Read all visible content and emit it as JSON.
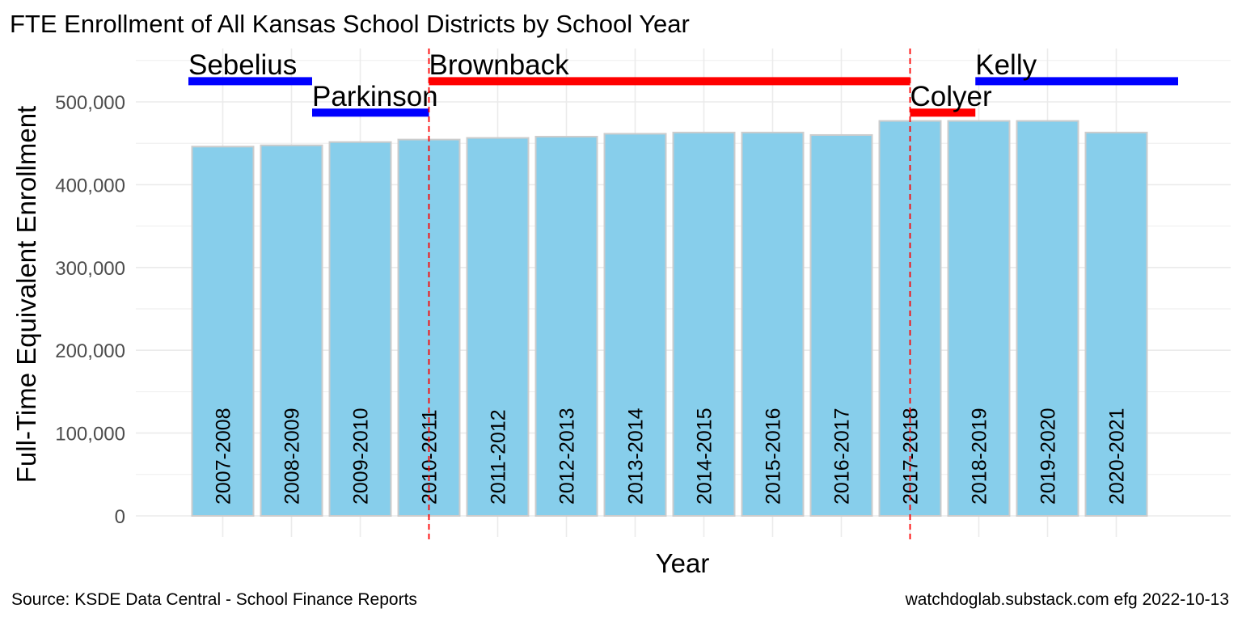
{
  "chart_data": {
    "type": "bar",
    "title": "FTE Enrollment of All Kansas School Districts by School Year",
    "xlabel": "Year",
    "ylabel": "Full-Time Equivalent Enrollment",
    "ylim": [
      0,
      540000
    ],
    "yticks": [
      0,
      100000,
      200000,
      300000,
      400000,
      500000
    ],
    "ytick_labels": [
      "0",
      "100,000",
      "200,000",
      "300,000",
      "400,000",
      "500,000"
    ],
    "categories": [
      "2007-2008",
      "2008-2009",
      "2009-2010",
      "2010-2011",
      "2011-2012",
      "2012-2013",
      "2013-2014",
      "2014-2015",
      "2015-2016",
      "2016-2017",
      "2017-2018",
      "2018-2019",
      "2019-2020",
      "2020-2021"
    ],
    "values": [
      446000,
      447500,
      451500,
      454500,
      456500,
      458000,
      461500,
      463000,
      463000,
      460000,
      477000,
      477000,
      477000,
      463000
    ],
    "bar_color": "#87CEEB",
    "bar_edge_color": "#cccccc",
    "grid": true,
    "legend": "none",
    "governors": [
      {
        "name": "Sebelius",
        "start": 0.5,
        "end": 2.3,
        "level": 525000,
        "label_level": 533000,
        "color": "#0000FF"
      },
      {
        "name": "Parkinson",
        "start": 2.3,
        "end": 4.0,
        "level": 487000,
        "label_level": 495000,
        "color": "#0000FF"
      },
      {
        "name": "Brownback",
        "start": 4.0,
        "end": 11.0,
        "level": 525000,
        "label_level": 533000,
        "color": "#FF0000"
      },
      {
        "name": "Colyer",
        "start": 11.0,
        "end": 11.95,
        "level": 487000,
        "label_level": 495000,
        "color": "#FF0000"
      },
      {
        "name": "Kelly",
        "start": 11.95,
        "end": 14.9,
        "level": 525000,
        "label_level": 533000,
        "color": "#0000FF"
      }
    ],
    "vlines": [
      {
        "x": 4.0,
        "color": "#FF0000",
        "style": "dashed"
      },
      {
        "x": 11.0,
        "color": "#FF0000",
        "style": "dashed"
      }
    ]
  },
  "caption": {
    "left": "Source:  KSDE Data Central - School Finance Reports",
    "right": "watchdoglab.substack.com  efg 2022-10-13"
  }
}
